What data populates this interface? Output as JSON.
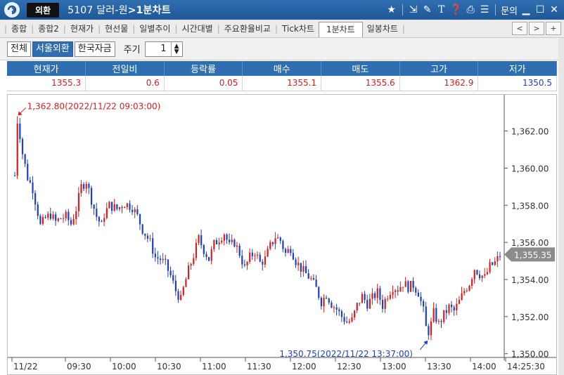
{
  "window": {
    "badge": "외환",
    "code": "5107",
    "instrument": "달러-원",
    "view": ">1분차트",
    "help_label": "문의"
  },
  "tabs": [
    {
      "label": "종합",
      "active": false
    },
    {
      "label": "종합2",
      "active": false
    },
    {
      "label": "현재가",
      "active": false
    },
    {
      "label": "현선물",
      "active": false
    },
    {
      "label": "일별추이",
      "active": false
    },
    {
      "label": "시간대별",
      "active": false
    },
    {
      "label": "주요환율비교",
      "active": false
    },
    {
      "label": "Tick차트",
      "active": false
    },
    {
      "label": "1분차트",
      "active": true
    },
    {
      "label": "일봉차트",
      "active": false
    }
  ],
  "toolbar": {
    "segments": [
      {
        "label": "전체",
        "active": false
      },
      {
        "label": "서울외환",
        "active": true
      },
      {
        "label": "한국자금",
        "active": false
      }
    ],
    "period_label": "주기",
    "period_value": "1"
  },
  "quote": {
    "headers": [
      "현재가",
      "전일비",
      "등락률",
      "매수",
      "매도",
      "고가",
      "저가"
    ],
    "values": [
      "1355.3",
      "0.6",
      "0.05",
      "1355.1",
      "1355.6",
      "1362.9",
      "1350.5"
    ],
    "colors": [
      "up",
      "up",
      "up",
      "up",
      "up",
      "up",
      "down"
    ]
  },
  "chart_data": {
    "type": "candlestick",
    "x_tick_labels": [
      "11/22",
      "09:30",
      "10:00",
      "10:30",
      "11:00",
      "11:30",
      "12:00",
      "12:30",
      "13:00",
      "13:30",
      "14:00",
      "14:25:30"
    ],
    "y_tick_labels": [
      "1,362.00",
      "1,360.00",
      "1,358.00",
      "1,356.00",
      "1,354.00",
      "1,352.00",
      "1,350.00"
    ],
    "ylim": [
      1349.8,
      1363.8
    ],
    "high_annotation": "1,362.80(2022/11/22 09:03:00)",
    "low_annotation": "1,350.75(2022/11/22 13:37:00)",
    "current_price_label": "1,355.35",
    "current_price": 1355.35,
    "high": 1362.8,
    "low": 1350.75,
    "up_color": "#d42020",
    "down_color": "#1f3fbf",
    "close_path": [
      [
        0,
        1359.6
      ],
      [
        1,
        1362.6
      ],
      [
        2,
        1361.8
      ],
      [
        3,
        1360.8
      ],
      [
        5,
        1359.5
      ],
      [
        7,
        1358.9
      ],
      [
        9,
        1357.6
      ],
      [
        10,
        1356.9
      ],
      [
        12,
        1357.3
      ],
      [
        14,
        1357.5
      ],
      [
        16,
        1357.1
      ],
      [
        18,
        1357.3
      ],
      [
        20,
        1357.4
      ],
      [
        22,
        1357.0
      ],
      [
        24,
        1357.8
      ],
      [
        26,
        1359.0
      ],
      [
        28,
        1359.3
      ],
      [
        30,
        1358.3
      ],
      [
        32,
        1357.4
      ],
      [
        34,
        1356.9
      ],
      [
        35,
        1357.5
      ],
      [
        37,
        1358.0
      ],
      [
        40,
        1357.8
      ],
      [
        43,
        1358.1
      ],
      [
        46,
        1357.9
      ],
      [
        48,
        1357.4
      ],
      [
        50,
        1356.7
      ],
      [
        53,
        1356.0
      ],
      [
        55,
        1355.2
      ],
      [
        57,
        1355.1
      ],
      [
        59,
        1354.8
      ],
      [
        61,
        1354.2
      ],
      [
        63,
        1353.4
      ],
      [
        65,
        1352.9
      ],
      [
        66,
        1353.5
      ],
      [
        68,
        1354.5
      ],
      [
        70,
        1355.3
      ],
      [
        72,
        1356.2
      ],
      [
        74,
        1355.6
      ],
      [
        76,
        1355.1
      ],
      [
        78,
        1355.9
      ],
      [
        80,
        1356.2
      ],
      [
        82,
        1356.5
      ],
      [
        84,
        1355.8
      ],
      [
        86,
        1356.0
      ],
      [
        88,
        1355.4
      ],
      [
        90,
        1354.6
      ],
      [
        92,
        1355.2
      ],
      [
        94,
        1355.5
      ],
      [
        96,
        1354.9
      ],
      [
        98,
        1355.1
      ],
      [
        100,
        1355.8
      ],
      [
        102,
        1356.3
      ],
      [
        104,
        1356.1
      ],
      [
        106,
        1355.4
      ],
      [
        108,
        1355.7
      ],
      [
        110,
        1355.0
      ],
      [
        112,
        1354.6
      ],
      [
        114,
        1354.3
      ],
      [
        116,
        1354.0
      ],
      [
        118,
        1353.5
      ],
      [
        120,
        1352.8
      ],
      [
        122,
        1353.2
      ],
      [
        124,
        1352.7
      ],
      [
        126,
        1352.4
      ],
      [
        128,
        1352.0
      ],
      [
        130,
        1351.7
      ],
      [
        132,
        1351.8
      ],
      [
        134,
        1352.6
      ],
      [
        136,
        1353.1
      ],
      [
        138,
        1352.7
      ],
      [
        140,
        1353.0
      ],
      [
        142,
        1353.3
      ],
      [
        144,
        1352.6
      ],
      [
        146,
        1353.2
      ],
      [
        148,
        1353.6
      ],
      [
        150,
        1353.5
      ],
      [
        152,
        1353.8
      ],
      [
        154,
        1353.6
      ],
      [
        156,
        1353.7
      ],
      [
        158,
        1353.3
      ],
      [
        160,
        1352.3
      ],
      [
        161,
        1351.4
      ],
      [
        162,
        1351.0
      ],
      [
        163,
        1351.6
      ],
      [
        164,
        1352.2
      ],
      [
        166,
        1351.6
      ],
      [
        168,
        1352.1
      ],
      [
        170,
        1352.5
      ],
      [
        172,
        1352.3
      ],
      [
        174,
        1352.8
      ],
      [
        176,
        1353.4
      ],
      [
        178,
        1353.8
      ],
      [
        180,
        1354.6
      ],
      [
        182,
        1354.3
      ],
      [
        184,
        1354.1
      ],
      [
        186,
        1354.7
      ],
      [
        188,
        1354.9
      ],
      [
        190,
        1355.3
      ]
    ]
  }
}
